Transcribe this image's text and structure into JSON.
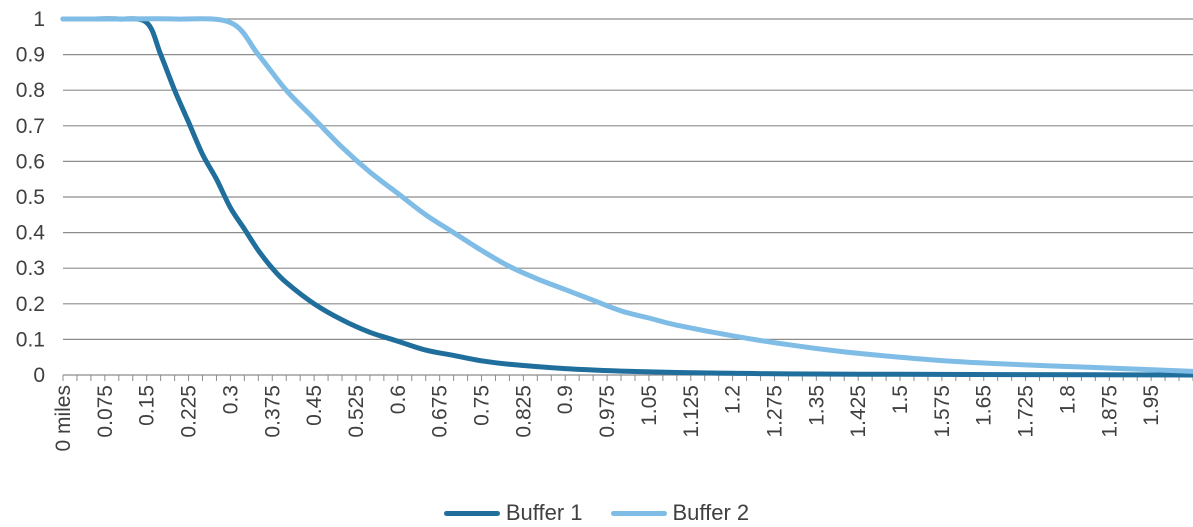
{
  "chart_data": {
    "type": "line",
    "title": "",
    "xlabel": "",
    "ylabel": "",
    "ylim": [
      0,
      1
    ],
    "y_ticks": [
      "0",
      "0.1",
      "0.2",
      "0.3",
      "0.4",
      "0.5",
      "0.6",
      "0.7",
      "0.8",
      "0.9",
      "1"
    ],
    "x_tick_labels": [
      "0 miles",
      "0.075",
      "0.15",
      "0.225",
      "0.3",
      "0.375",
      "0.45",
      "0.525",
      "0.6",
      "0.675",
      "0.75",
      "0.825",
      "0.9",
      "0.975",
      "1.05",
      "1.125",
      "1.2",
      "1.275",
      "1.35",
      "1.425",
      "1.5",
      "1.575",
      "1.65",
      "1.725",
      "1.8",
      "1.875",
      "1.95"
    ],
    "x_range": [
      0,
      2.025
    ],
    "grid": "horizontal",
    "legend_position": "bottom",
    "series": [
      {
        "name": "Buffer 1",
        "color": "#1F6E9C",
        "x": [
          0,
          0.05,
          0.1,
          0.15,
          0.175,
          0.2,
          0.225,
          0.25,
          0.275,
          0.3,
          0.325,
          0.35,
          0.375,
          0.4,
          0.45,
          0.5,
          0.55,
          0.6,
          0.65,
          0.7,
          0.75,
          0.8,
          0.9,
          1.0,
          1.1,
          1.2,
          1.3,
          1.5,
          1.7,
          2.025
        ],
        "y": [
          1,
          1,
          1,
          0.99,
          0.9,
          0.8,
          0.71,
          0.62,
          0.55,
          0.47,
          0.41,
          0.35,
          0.3,
          0.26,
          0.2,
          0.155,
          0.12,
          0.095,
          0.07,
          0.055,
          0.04,
          0.03,
          0.018,
          0.011,
          0.007,
          0.005,
          0.003,
          0.002,
          0.001,
          0
        ]
      },
      {
        "name": "Buffer 2",
        "color": "#7FBCE6",
        "x": [
          0,
          0.1,
          0.2,
          0.3,
          0.35,
          0.4,
          0.45,
          0.5,
          0.55,
          0.6,
          0.65,
          0.7,
          0.75,
          0.8,
          0.85,
          0.9,
          0.95,
          1.0,
          1.05,
          1.1,
          1.2,
          1.3,
          1.4,
          1.5,
          1.6,
          1.7,
          1.8,
          1.9,
          2.025
        ],
        "y": [
          1,
          1,
          1,
          0.99,
          0.9,
          0.8,
          0.72,
          0.64,
          0.57,
          0.51,
          0.45,
          0.4,
          0.35,
          0.305,
          0.27,
          0.24,
          0.21,
          0.18,
          0.16,
          0.14,
          0.11,
          0.085,
          0.065,
          0.05,
          0.038,
          0.03,
          0.024,
          0.018,
          0.01
        ]
      }
    ]
  }
}
